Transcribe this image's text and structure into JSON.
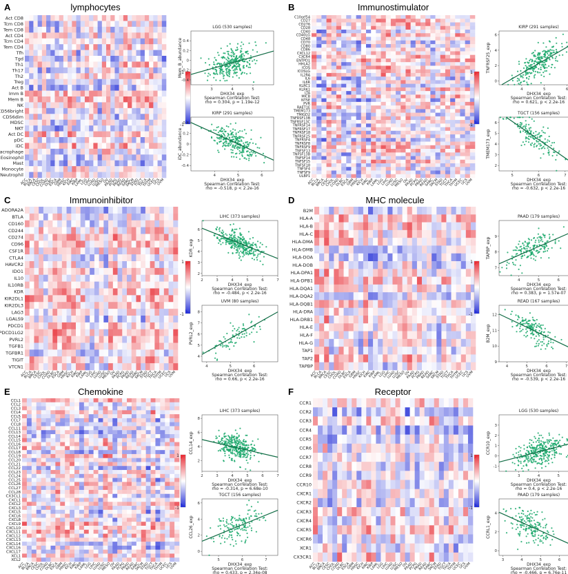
{
  "colors": {
    "high": "#e8323a",
    "low": "#2a35d8",
    "mid": "#ffffff",
    "point": "#1aa86b",
    "line": "#106b44"
  },
  "legend": {
    "top": "1",
    "bottom": "-1"
  },
  "cancers": [
    "ACC",
    "BLCA",
    "BRCA",
    "CESC",
    "CHOL",
    "COAD",
    "DLBC",
    "ESCA",
    "GBM",
    "HNSC",
    "KICH",
    "KIRC",
    "KIRP",
    "LAML",
    "LGG",
    "LIHC",
    "LUAD",
    "LUSC",
    "MESO",
    "OV",
    "PAAD",
    "PCPG",
    "PRAD",
    "READ",
    "SARC",
    "SKCM",
    "STAD",
    "TGCT",
    "THCA",
    "THYM",
    "UCEC",
    "UCS",
    "UVM"
  ],
  "xcommon": "DHX34_exp",
  "stat_title": "Spearman Correlation Test:",
  "panels": [
    {
      "label": "A",
      "title": "lymphocytes",
      "rows": [
        "Act CD8",
        "Tcm CD8",
        "Tem CD8",
        "Act CD4",
        "Tcm CD4",
        "Tem CD4",
        "Tfh",
        "Tgd",
        "Th1",
        "Th17",
        "Th2",
        "Treg",
        "Act B",
        "Imm B",
        "Mem B",
        "NK",
        "CD56bright",
        "CD56dim",
        "MDSC",
        "NKT",
        "Act DC",
        "pDC",
        "iDC",
        "Macrophage",
        "Eosinophil",
        "Mast",
        "Monocyte",
        "Neutrophil"
      ],
      "scatters": [
        {
          "title": "LGG (530 samples)",
          "ylabel": "Mem_B_abundance",
          "xlabel": "DHX34_exp",
          "stat": "rho = 0.304, p = 1.19e-12",
          "xlim": [
            2,
            6
          ],
          "ylim": [
            -0.5,
            0.6
          ],
          "xticks": [
            3,
            4,
            5
          ],
          "yticks": [
            -0.4,
            -0.2,
            0,
            0.2,
            0.4
          ],
          "slope": 0.12,
          "intercept": -0.53,
          "n": 300,
          "noise": 0.16,
          "xc": 4,
          "xs": 0.55
        },
        {
          "title": "KIRP (291 samples)",
          "ylabel": "iDC_abundance",
          "xlabel": "DHX34_exp",
          "stat": "rho = -0.518, p < 2.2e-16",
          "xlim": [
            3,
            6.5
          ],
          "ylim": [
            -0.5,
            0.5
          ],
          "xticks": [
            4,
            5,
            6
          ],
          "yticks": [
            -0.4,
            -0.2,
            0,
            0.2,
            0.4
          ],
          "slope": -0.2,
          "intercept": 1.0,
          "n": 260,
          "noise": 0.12,
          "xc": 4.8,
          "xs": 0.5
        }
      ]
    },
    {
      "label": "B",
      "title": "Immunostimulator",
      "rows": [
        "C10orf54",
        "CD27",
        "CD276",
        "CD28",
        "CD40",
        "CD40LG",
        "CD48",
        "CD70",
        "CD80",
        "CD86",
        "CXCL12",
        "CXCR4",
        "ENTPD1",
        "HHLA2",
        "ICOS",
        "ICOSLG",
        "IL2RA",
        "IL6",
        "IL6R",
        "KLRC1",
        "KLRK1",
        "LTA",
        "MICB",
        "NT5E",
        "PVR",
        "RAET1E",
        "TMEM173",
        "TMIGD2",
        "TNFRSF13B",
        "TNFRSF13C",
        "TNFRSF14",
        "TNFRSF17",
        "TNFRSF18",
        "TNFRSF25",
        "TNFRSF4",
        "TNFRSF8",
        "TNFRSF9",
        "TNFSF13",
        "TNFSF13B",
        "TNFSF14",
        "TNFSF15",
        "TNFSF18",
        "TNFSF4",
        "TNFSF9",
        "ULBP1"
      ],
      "scatters": [
        {
          "title": "KIRP (291 samples)",
          "ylabel": "TNFRSF25_exp",
          "xlabel": "DHX34_exp",
          "stat": "rho = 0.621, p < 2.2e-16",
          "xlim": [
            3,
            6.5
          ],
          "ylim": [
            -0.5,
            6.5
          ],
          "xticks": [
            4,
            5,
            6
          ],
          "yticks": [
            0,
            2,
            4,
            6
          ],
          "slope": 1.7,
          "intercept": -5.8,
          "n": 260,
          "noise": 0.9,
          "xc": 4.8,
          "xs": 0.55
        },
        {
          "title": "TGCT (156 samples)",
          "ylabel": "TMEM173_exp",
          "xlabel": "DHX34_exp",
          "stat": "rho = -0.632, p < 2.2e-16",
          "xlim": [
            4.5,
            7.5
          ],
          "ylim": [
            1.5,
            6.5
          ],
          "xticks": [
            5,
            6,
            7
          ],
          "yticks": [
            2,
            3,
            4,
            5,
            6
          ],
          "slope": -1.7,
          "intercept": 14.6,
          "n": 150,
          "noise": 0.6,
          "xc": 5.8,
          "xs": 0.5
        }
      ]
    },
    {
      "label": "C",
      "title": "Immunoinhibitor",
      "rows": [
        "ADORA2A",
        "BTLA",
        "CD160",
        "CD244",
        "CD274",
        "CD96",
        "CSF1R",
        "CTLA4",
        "HAVCR2",
        "IDO1",
        "IL10",
        "IL10RB",
        "KDR",
        "KIR2DL1",
        "KIR2DL3",
        "LAG3",
        "LGALS9",
        "PDCD1",
        "PDCD1LG2",
        "PVRL2",
        "TGFB1",
        "TGFBR1",
        "TIGIT",
        "VTCN1"
      ],
      "scatters": [
        {
          "title": "LIHC (373 samples)",
          "ylabel": "KDR_exp",
          "xlabel": "DHX34_exp",
          "stat": "rho = -0.484, p < 2.2e-16",
          "xlim": [
            2,
            7
          ],
          "ylim": [
            1.8,
            6.8
          ],
          "xticks": [
            2,
            3,
            4,
            5,
            6,
            7
          ],
          "yticks": [
            2,
            3,
            4,
            5,
            6
          ],
          "slope": -0.55,
          "intercept": 7.2,
          "n": 320,
          "noise": 0.5,
          "xc": 4.4,
          "xs": 0.7
        },
        {
          "title": "UVM (80 samples)",
          "ylabel": "PVRL2_exp",
          "xlabel": "DHX34_exp",
          "stat": "rho = 0.66, p < 2.2e-16",
          "xlim": [
            3.8,
            7
          ],
          "ylim": [
            3.5,
            8.6
          ],
          "xticks": [
            4,
            5,
            6
          ],
          "yticks": [
            4,
            5,
            6,
            7,
            8
          ],
          "slope": 1.2,
          "intercept": -0.4,
          "n": 80,
          "noise": 0.55,
          "xc": 5.2,
          "xs": 0.55
        }
      ]
    },
    {
      "label": "D",
      "title": "MHC molecule",
      "rows": [
        "B2M",
        "HLA-A",
        "HLA-B",
        "HLA-C",
        "HLA-DMA",
        "HLA-DMB",
        "HLA-DOA",
        "HLA-DOB",
        "HLA-DPA1",
        "HLA-DPB1",
        "HLA-DQA1",
        "HLA-DQA2",
        "HLA-DQB1",
        "HLA-DRA",
        "HLA-DRB1",
        "HLA-E",
        "HLA-F",
        "HLA-G",
        "TAP1",
        "TAP2",
        "TAPBP"
      ],
      "scatters": [
        {
          "title": "PAAD (179 samples)",
          "ylabel": "TAPBP_exp",
          "xlabel": "DHX34_exp",
          "stat": "rho = 0.383, p = 1.57e-07",
          "xlim": [
            3,
            7
          ],
          "ylim": [
            6.5,
            10
          ],
          "xticks": [
            4,
            5,
            6
          ],
          "yticks": [
            7,
            8,
            9
          ],
          "slope": 0.55,
          "intercept": 5.6,
          "n": 170,
          "noise": 0.45,
          "xc": 4.6,
          "xs": 0.6
        },
        {
          "title": "READ (167 samples)",
          "ylabel": "B2M_exp",
          "xlabel": "DHX34_exp",
          "stat": "rho = -0.539, p < 2.2e-16",
          "xlim": [
            3.6,
            7.6
          ],
          "ylim": [
            9,
            12.6
          ],
          "xticks": [
            4,
            5,
            6,
            7
          ],
          "yticks": [
            9,
            10,
            11,
            12
          ],
          "slope": -0.6,
          "intercept": 14.2,
          "n": 160,
          "noise": 0.4,
          "xc": 5.3,
          "xs": 0.6
        }
      ]
    },
    {
      "label": "E",
      "title": "Chemokine",
      "rows": [
        "CCL1",
        "CCL2",
        "CCL3",
        "CCL4",
        "CCL5",
        "CCL7",
        "CCL8",
        "CCL11",
        "CCL13",
        "CCL14",
        "CCL15",
        "CCL16",
        "CCL17",
        "CCL18",
        "CCL19",
        "CCL20",
        "CCL21",
        "CCL22",
        "CCL23",
        "CCL24",
        "CCL25",
        "CCL26",
        "CCL27",
        "CCL28",
        "CX3CL1",
        "CXCL1",
        "CXCL2",
        "CXCL3",
        "CXCL5",
        "CXCL6",
        "CXCL8",
        "CXCL9",
        "CXCL10",
        "CXCL11",
        "CXCL12",
        "CXCL13",
        "CXCL14",
        "CXCL16",
        "CXCL17",
        "XCL1",
        "XCL2"
      ],
      "scatters": [
        {
          "title": "LIHC (373 samples)",
          "ylabel": "CCL14_exp",
          "xlabel": "DHX34_exp",
          "stat": "rho = -0.314, p = 6.68e-10",
          "xlim": [
            2,
            7
          ],
          "ylim": [
            0.5,
            8.5
          ],
          "xticks": [
            2,
            3,
            4,
            5,
            6,
            7
          ],
          "yticks": [
            2,
            4,
            6,
            8
          ],
          "slope": -0.5,
          "intercept": 6.0,
          "n": 320,
          "noise": 0.9,
          "xc": 4.3,
          "xs": 0.65
        },
        {
          "title": "TGCT (156 samples)",
          "ylabel": "CCL26_exp",
          "xlabel": "DHX34_exp",
          "stat": "rho = 0.433, p = 2.34e-08",
          "xlim": [
            4.3,
            7.5
          ],
          "ylim": [
            -0.5,
            6.5
          ],
          "xticks": [
            5,
            6,
            7
          ],
          "yticks": [
            0,
            2,
            4,
            6
          ],
          "slope": 1.2,
          "intercept": -3.9,
          "n": 150,
          "noise": 1.0,
          "xc": 5.8,
          "xs": 0.5
        }
      ]
    },
    {
      "label": "F",
      "title": "Receptor",
      "rows": [
        "CCR1",
        "CCR2",
        "CCR3",
        "CCR4",
        "CCR5",
        "CCR6",
        "CCR7",
        "CCR8",
        "CCR9",
        "CCR10",
        "CXCR1",
        "CXCR2",
        "CXCR3",
        "CXCR4",
        "CXCR5",
        "CXCR6",
        "XCR1",
        "CX3CR1"
      ],
      "scatters": [
        {
          "title": "LGG (530 samples)",
          "ylabel": "CCR10_exp",
          "xlabel": "DHX34_exp",
          "stat": "rho = 0.4, p < 2.2e-16",
          "xlim": [
            2,
            6
          ],
          "ylim": [
            -1.5,
            4
          ],
          "xticks": [
            3,
            4,
            5
          ],
          "yticks": [
            -1,
            0,
            1,
            2,
            3
          ],
          "slope": 0.5,
          "intercept": -1.6,
          "n": 320,
          "noise": 0.65,
          "xc": 4.1,
          "xs": 0.55
        },
        {
          "title": "PAAD (179 samples)",
          "ylabel": "CCRL1_exp",
          "xlabel": "DHX34_exp",
          "stat": "rho = -0.466, p = 6.76e-11",
          "xlim": [
            2.8,
            7
          ],
          "ylim": [
            -0.5,
            5.5
          ],
          "xticks": [
            3,
            4,
            5,
            6
          ],
          "yticks": [
            0,
            2,
            4
          ],
          "slope": -0.9,
          "intercept": 6.6,
          "n": 170,
          "noise": 0.8,
          "xc": 4.5,
          "xs": 0.55
        }
      ]
    }
  ]
}
